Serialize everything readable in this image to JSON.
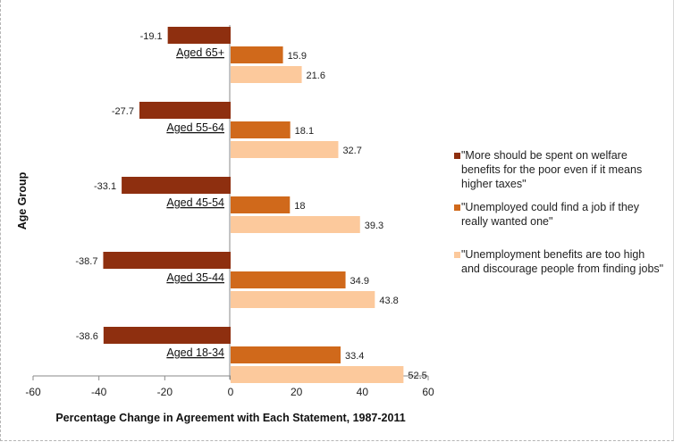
{
  "chart_data": {
    "type": "bar",
    "orientation": "horizontal",
    "categories": [
      "Aged 65+",
      "Aged 55-64",
      "Aged 45-54",
      "Aged 35-44",
      "Aged 18-34"
    ],
    "series": [
      {
        "name": "\"More should be spent on welfare benefits for the poor even if it means higher taxes\"",
        "color": "#8e2f0f",
        "values": [
          -19.1,
          -27.7,
          -33.1,
          -38.7,
          -38.6
        ]
      },
      {
        "name": "\"Unemployed could find a job if they really wanted one\"",
        "color": "#d0691b",
        "values": [
          15.9,
          18.1,
          18,
          34.9,
          33.4
        ]
      },
      {
        "name": "\"Unemployment benefits are too high and discourage people from finding jobs\"",
        "color": "#fcc99c",
        "values": [
          21.6,
          32.7,
          39.3,
          43.8,
          52.5
        ]
      }
    ],
    "value_labels": [
      [
        "-19.1",
        "15.9",
        "21.6"
      ],
      [
        "-27.7",
        "18.1",
        "32.7"
      ],
      [
        "-33.1",
        "18",
        "39.3"
      ],
      [
        "-38.7",
        "34.9",
        "43.8"
      ],
      [
        "-38.6",
        "33.4",
        "52.5"
      ]
    ],
    "xlabel": "Percentage Change in Agreement with Each Statement, 1987-2011",
    "ylabel": "Age Group",
    "xlim": [
      -60,
      60
    ],
    "xticks": [
      "-60",
      "-40",
      "-20",
      "0",
      "20",
      "40",
      "60"
    ],
    "grid": false,
    "legend_position": "right"
  }
}
